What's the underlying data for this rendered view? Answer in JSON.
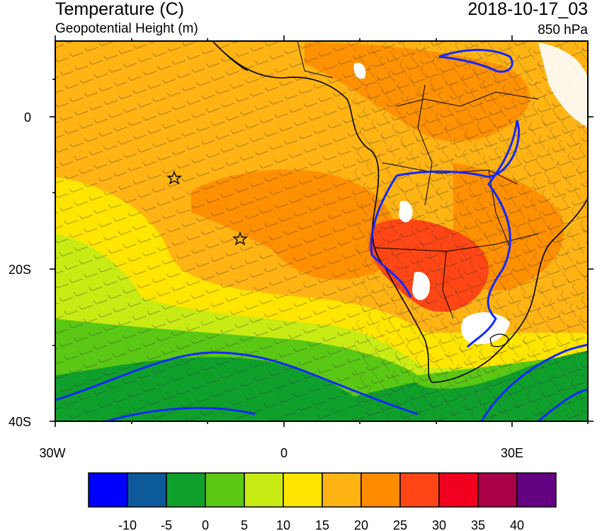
{
  "header": {
    "title": "Temperature (C)",
    "subtitle": "Geopotential Height (m)",
    "datetime": "2018-10-17_03",
    "level": "850 hPa"
  },
  "axes": {
    "y_ticks": [
      "0",
      "20S",
      "40S"
    ],
    "x_ticks": [
      "30W",
      "0",
      "30E"
    ]
  },
  "colorbar": {
    "colors": [
      "#0000ff",
      "#0c5a9a",
      "#0fa02c",
      "#5ac814",
      "#c8eb14",
      "#ffe600",
      "#ffb414",
      "#ff8c00",
      "#ff4614",
      "#f0001e",
      "#aa0046",
      "#640082"
    ],
    "labels": [
      "-10",
      "-5",
      "0",
      "5",
      "10",
      "15",
      "20",
      "25",
      "30",
      "35",
      "40"
    ]
  },
  "map": {
    "markers": [
      "star-marker-1",
      "star-marker-2"
    ],
    "contour_color": "#1428ff"
  }
}
